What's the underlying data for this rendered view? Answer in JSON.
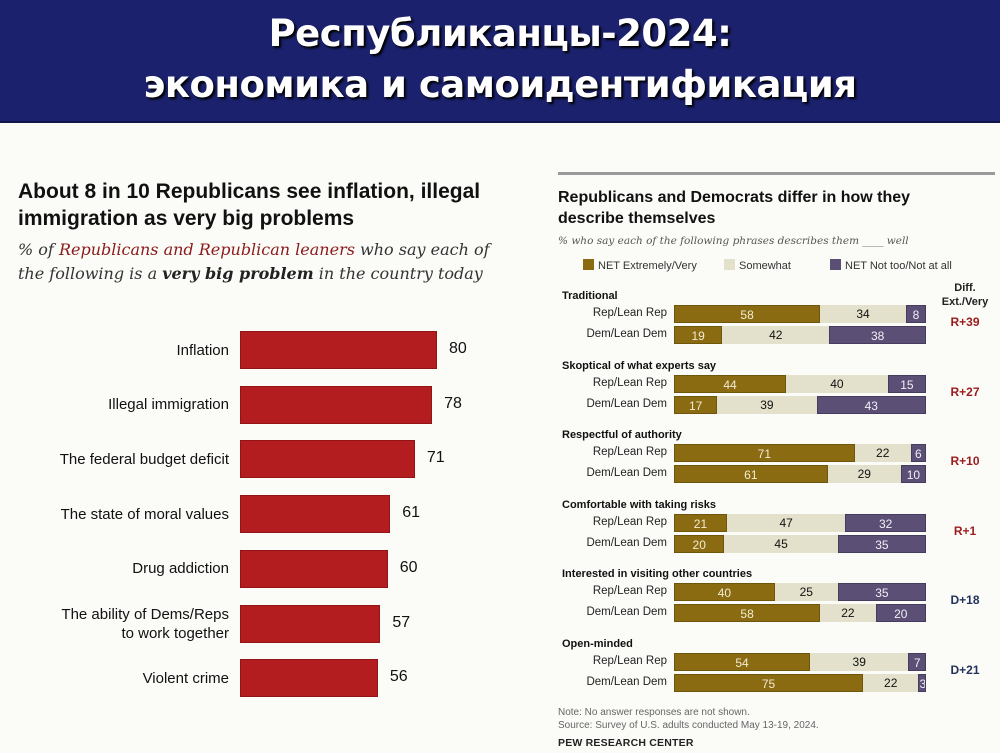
{
  "header": {
    "line1": "Республиканцы-2024:",
    "line2": "экономика и самоидентификация"
  },
  "chart_data": [
    {
      "type": "bar",
      "orientation": "horizontal",
      "title": "About 8 in 10 Republicans see inflation, illegal immigration as very big problems",
      "subtitle": {
        "prefix": "% of ",
        "highlight": "Republicans and Republican leaners",
        "middle": " who say each of the following is a ",
        "emphasis": "very big problem",
        "suffix": " in the country today"
      },
      "categories": [
        "Inflation",
        "Illegal immigration",
        "The federal budget deficit",
        "The state of moral values",
        "Drug addiction",
        "The ability of Dems/Reps to work together",
        "Violent crime"
      ],
      "category_lines": [
        [
          "Inflation"
        ],
        [
          "Illegal immigration"
        ],
        [
          "The federal budget deficit"
        ],
        [
          "The state of moral values"
        ],
        [
          "Drug addiction"
        ],
        [
          "The ability of Dems/Reps",
          "to work together"
        ],
        [
          "Violent crime"
        ]
      ],
      "values": [
        80,
        78,
        71,
        61,
        60,
        57,
        56
      ],
      "value_labels": [
        "80",
        "78",
        "71",
        "61",
        "60",
        "57",
        "56"
      ],
      "xlim": [
        0,
        100
      ],
      "grid": false,
      "color": "#b31d1f"
    },
    {
      "type": "bar",
      "orientation": "horizontal",
      "stacked": true,
      "title": "Republicans and Democrats differ in how they describe themselves",
      "subtitle": "% who say each of the following phrases describes them ____ well",
      "legend": [
        {
          "name": "NET Extremely/Very",
          "color": "#8a6b12"
        },
        {
          "name": "Somewhat",
          "color": "#e3e1cc"
        },
        {
          "name": "NET Not too/Not at all",
          "color": "#5b4f75"
        }
      ],
      "legend_position": "top",
      "diff_header": [
        "Diff.",
        "Ext./Very"
      ],
      "xlim": [
        0,
        100
      ],
      "groups": [
        {
          "title": "Traditional",
          "rows": [
            {
              "label": "Rep/Lean Rep",
              "values": [
                58,
                34,
                8
              ]
            },
            {
              "label": "Dem/Lean Dem",
              "values": [
                19,
                42,
                38
              ]
            }
          ],
          "diff": "R+39",
          "diff_party": "R"
        },
        {
          "title": "Skoptical of what experts say",
          "rows": [
            {
              "label": "Rep/Lean Rep",
              "values": [
                44,
                40,
                15
              ]
            },
            {
              "label": "Dem/Lean Dem",
              "values": [
                17,
                39,
                43
              ]
            }
          ],
          "diff": "R+27",
          "diff_party": "R"
        },
        {
          "title": "Respectful of authority",
          "rows": [
            {
              "label": "Rep/Lean Rep",
              "values": [
                71,
                22,
                6
              ]
            },
            {
              "label": "Dem/Lean Dem",
              "values": [
                61,
                29,
                10
              ]
            }
          ],
          "diff": "R+10",
          "diff_party": "R"
        },
        {
          "title": "Comfortable with taking risks",
          "rows": [
            {
              "label": "Rep/Lean Rep",
              "values": [
                21,
                47,
                32
              ]
            },
            {
              "label": "Dem/Lean Dem",
              "values": [
                20,
                45,
                35
              ]
            }
          ],
          "diff": "R+1",
          "diff_party": "R"
        },
        {
          "title": "Interested in visiting other countries",
          "rows": [
            {
              "label": "Rep/Lean Rep",
              "values": [
                40,
                25,
                35
              ]
            },
            {
              "label": "Dem/Lean Dem",
              "values": [
                58,
                22,
                20
              ]
            }
          ],
          "diff": "D+18",
          "diff_party": "D"
        },
        {
          "title": "Open-minded",
          "rows": [
            {
              "label": "Rep/Lean Rep",
              "values": [
                54,
                39,
                7
              ]
            },
            {
              "label": "Dem/Lean Dem",
              "values": [
                75,
                22,
                3
              ]
            }
          ],
          "diff": "D+21",
          "diff_party": "D"
        }
      ],
      "note": "Note: No answer responses are not shown.",
      "source": "Source: Survey of U.S. adults conducted May 13-19, 2024.",
      "credit": "PEW RESEARCH CENTER",
      "diff_colors": {
        "R": "#9b1c1c",
        "D": "#23335e"
      }
    }
  ]
}
